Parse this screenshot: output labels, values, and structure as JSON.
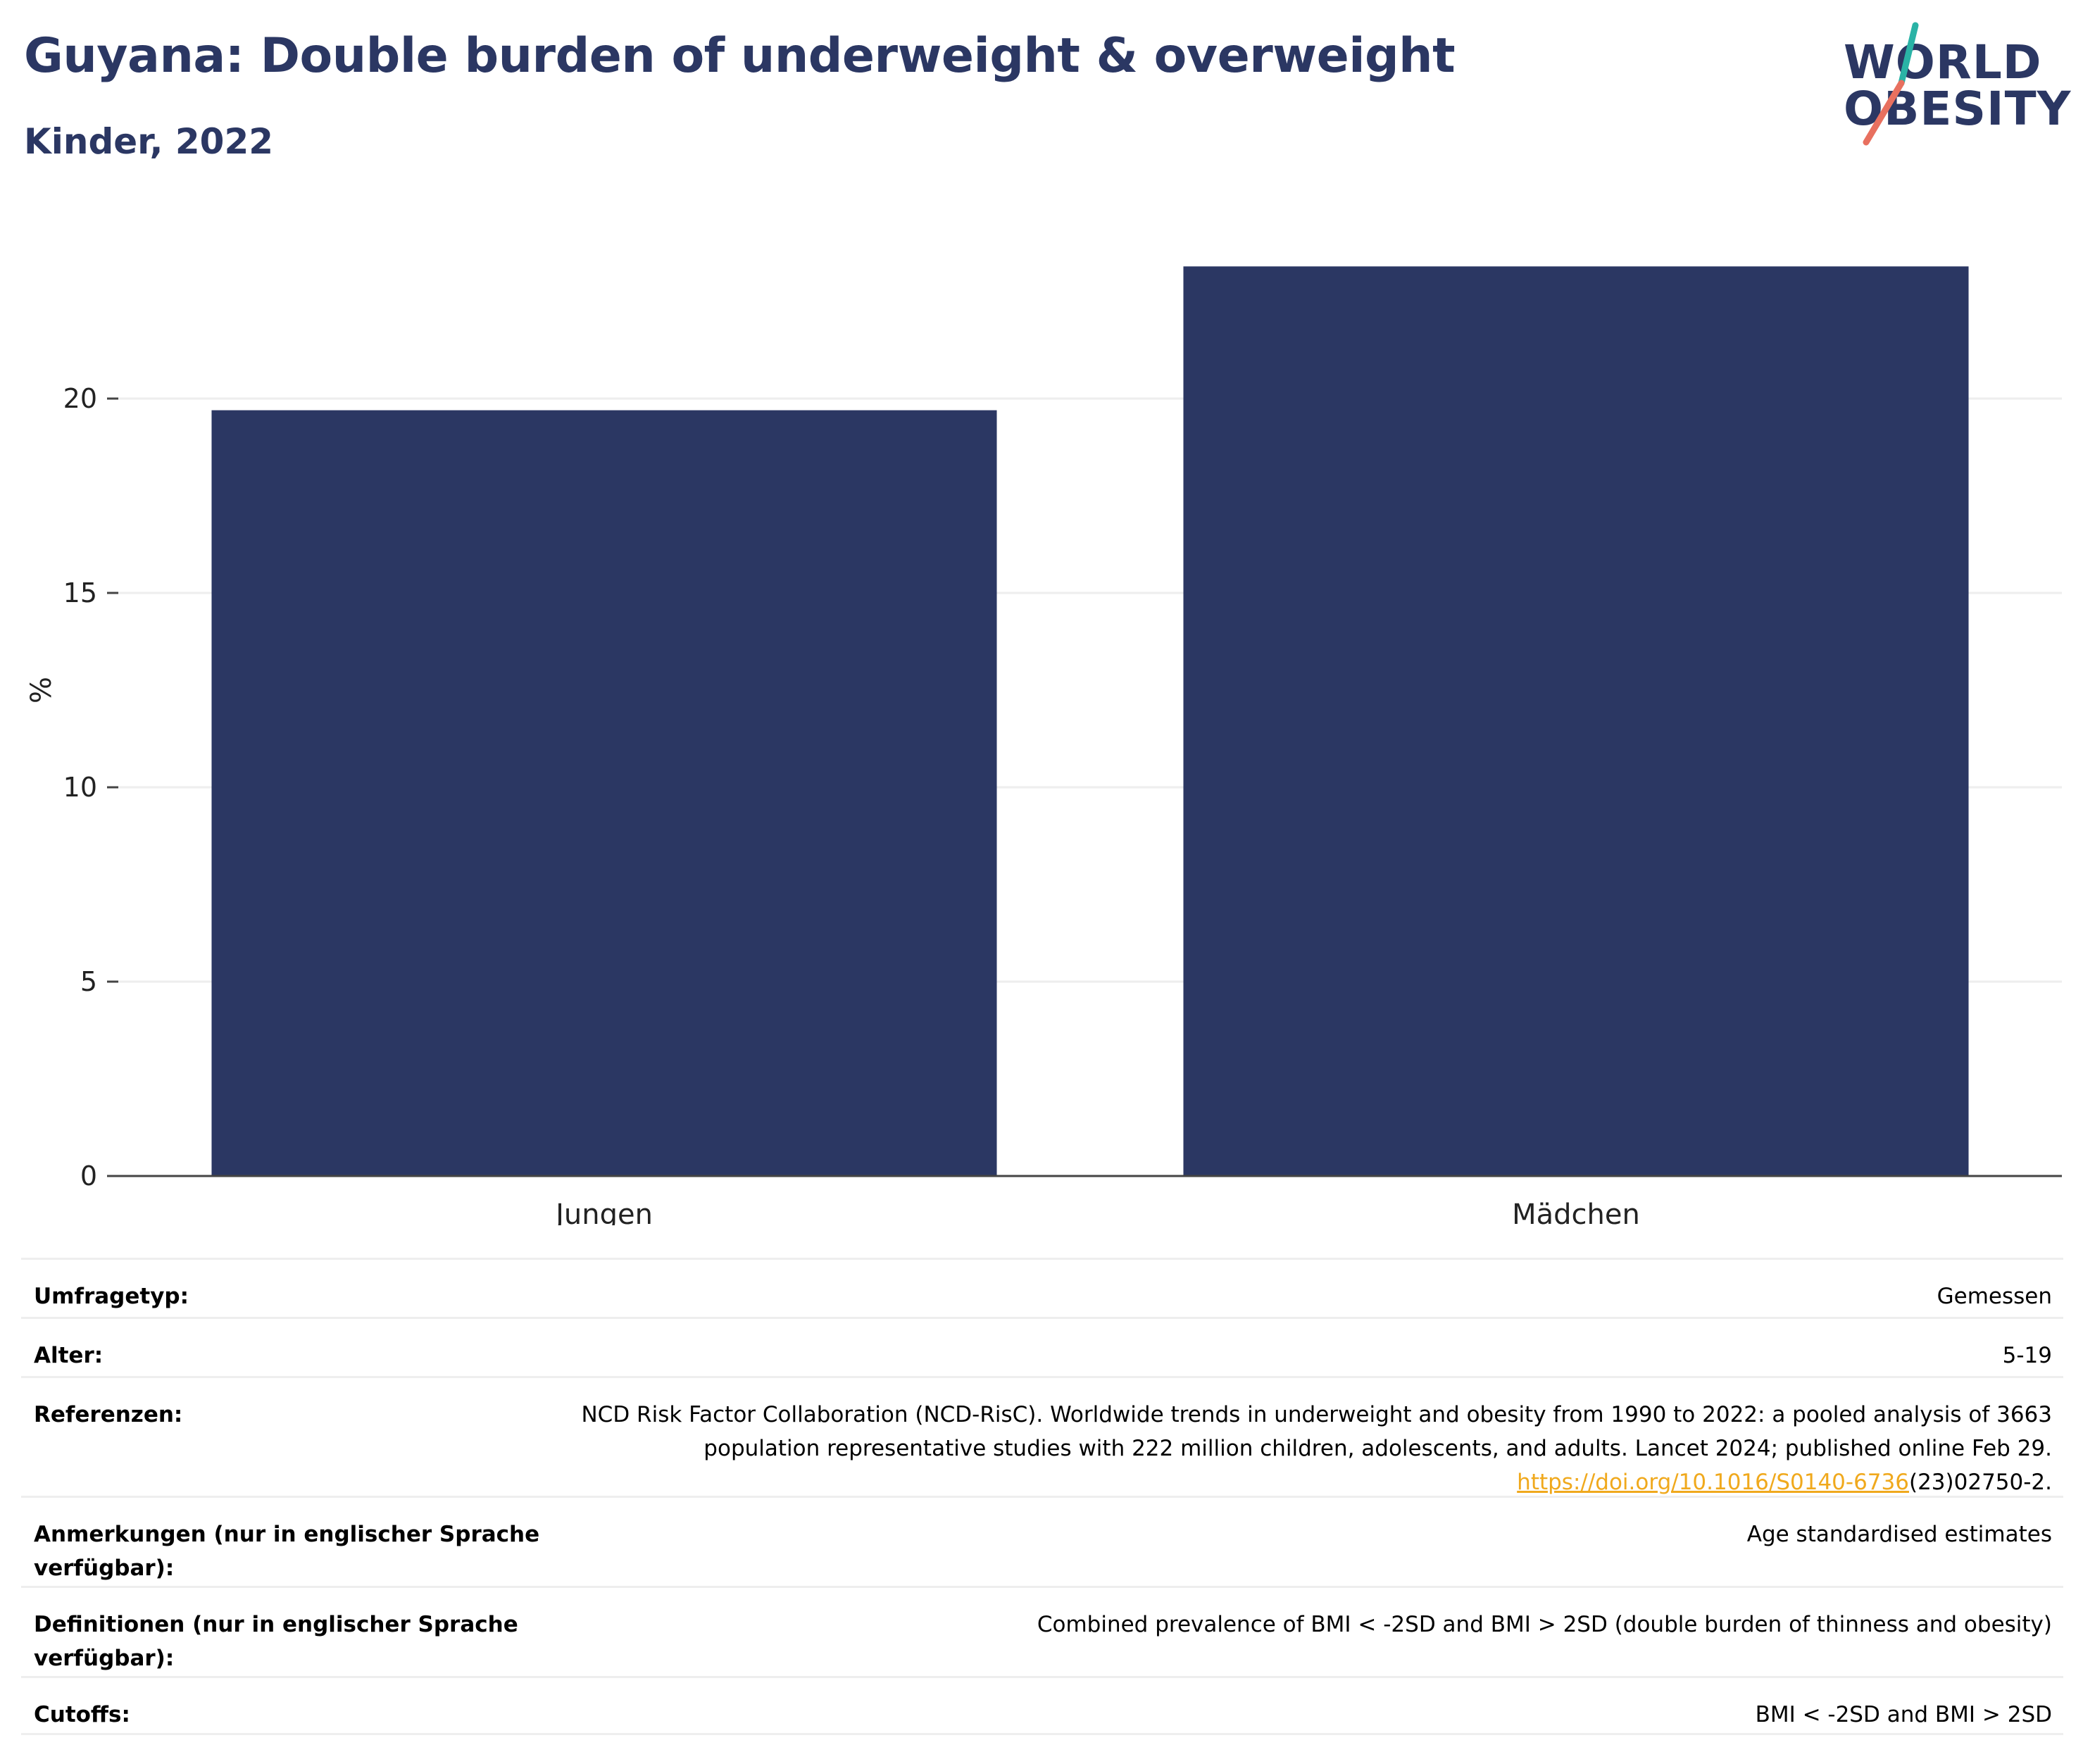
{
  "header": {
    "title": "Guyana: Double burden of underweight & overweight",
    "subtitle": "Kinder, 2022"
  },
  "logo": {
    "line1": "WORLD",
    "line2": "OBESITY",
    "accent_teal": "#2ab3a6",
    "accent_coral": "#e8705f"
  },
  "colors": {
    "bar": "#2b3763",
    "title": "#2b3763",
    "grid": "#eeeeee",
    "axis": "#444444"
  },
  "chart_data": {
    "type": "bar",
    "categories": [
      "Jungen",
      "Mädchen"
    ],
    "values": [
      19.7,
      23.4
    ],
    "title": "",
    "xlabel": "",
    "ylabel": "%",
    "ylim": [
      0,
      25
    ],
    "yticks": [
      0,
      5,
      10,
      15,
      20
    ],
    "grid": true,
    "legend": "none"
  },
  "meta": {
    "rows": [
      {
        "label": "Umfragetyp:",
        "value": "Gemessen"
      },
      {
        "label": "Alter:",
        "value": "5-19"
      },
      {
        "label": "Referenzen:",
        "value": "NCD Risk Factor Collaboration (NCD-RisC). Worldwide trends in underweight and obesity from 1990 to 2022: a pooled analysis of 3663 population representative studies with 222 million children, adolescents, and adults. Lancet 2024; published online Feb 29.",
        "link": "https://doi.org/10.1016/S0140-6736",
        "suffix": "(23)02750-2."
      },
      {
        "label": "Anmerkungen (nur in englischer Sprache verfügbar):",
        "value": "Age standardised estimates"
      },
      {
        "label": "Definitionen (nur in englischer Sprache verfügbar):",
        "value": "Combined prevalence of BMI < -2SD and BMI > 2SD (double burden of thinness and obesity)"
      },
      {
        "label": "Cutoffs:",
        "value": "BMI < -2SD and BMI > 2SD"
      }
    ]
  }
}
